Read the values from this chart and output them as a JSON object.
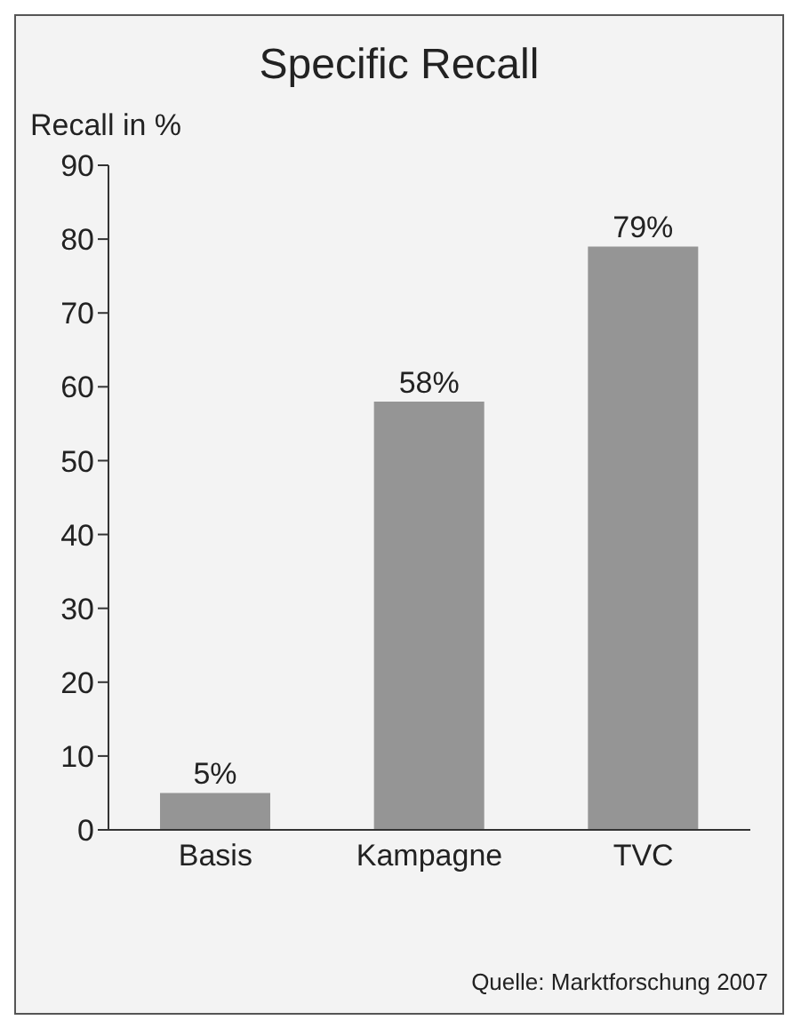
{
  "chart_data": {
    "type": "bar",
    "title": "Specific Recall",
    "ylabel": "Recall in %",
    "categories": [
      "Basis",
      "Kampagne",
      "TVC"
    ],
    "values": [
      5,
      58,
      79
    ],
    "value_labels": [
      "5%",
      "58%",
      "79%"
    ],
    "color": "#959595",
    "ylim": [
      0,
      90
    ],
    "yticks": [
      0,
      10,
      20,
      30,
      40,
      50,
      60,
      70,
      80,
      90
    ],
    "annotations": [
      "Quelle: Marktforschung 2007"
    ]
  }
}
